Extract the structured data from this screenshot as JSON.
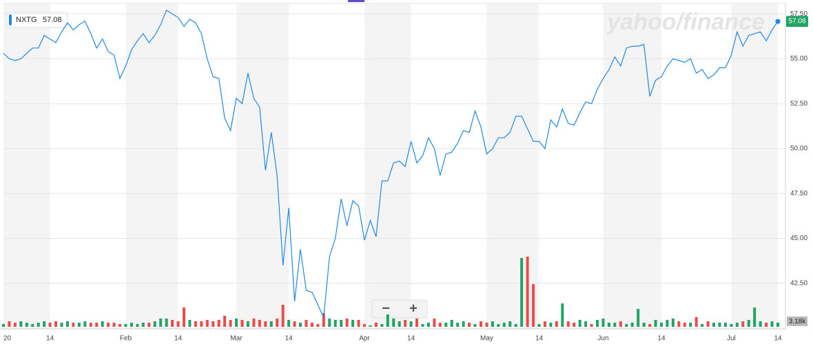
{
  "chart_data": {
    "type": "line",
    "symbol": "NXTG",
    "watermark": "yahoo/finance",
    "zoom_controls": [
      "−",
      "+"
    ],
    "volume_label": "3.18k",
    "categories": [
      "20",
      null,
      null,
      null,
      null,
      null,
      null,
      null,
      "14",
      null,
      null,
      null,
      null,
      null,
      null,
      null,
      null,
      null,
      null,
      null,
      null,
      "Feb",
      null,
      null,
      null,
      null,
      null,
      null,
      null,
      null,
      "14",
      null,
      null,
      null,
      null,
      null,
      null,
      null,
      null,
      null,
      "Mar",
      null,
      null,
      null,
      null,
      null,
      null,
      null,
      null,
      "14",
      null,
      null,
      null,
      null,
      null,
      null,
      null,
      null,
      null,
      null,
      null,
      null,
      "Apr",
      null,
      null,
      null,
      null,
      null,
      null,
      null,
      "14",
      null,
      null,
      null,
      null,
      null,
      null,
      null,
      null,
      null,
      null,
      null,
      null,
      "May",
      null,
      null,
      null,
      null,
      null,
      null,
      null,
      null,
      "14",
      null,
      null,
      null,
      null,
      null,
      null,
      null,
      null,
      null,
      null,
      "Jun",
      null,
      null,
      null,
      null,
      null,
      null,
      null,
      null,
      null,
      "14",
      null,
      null,
      null,
      null,
      null,
      null,
      null,
      null,
      null,
      null,
      null,
      "Jul",
      null,
      null,
      null,
      null,
      null,
      null,
      null,
      "14"
    ],
    "series": [
      {
        "name": "NXTG",
        "color": "#1e88e5",
        "values": [
          55.3,
          55.0,
          54.9,
          55.0,
          55.3,
          55.6,
          55.6,
          56.3,
          56.1,
          55.9,
          56.5,
          57.0,
          56.6,
          56.9,
          57.1,
          56.4,
          55.6,
          56.1,
          55.4,
          55.2,
          53.9,
          54.6,
          55.5,
          56.0,
          56.4,
          55.9,
          56.3,
          56.9,
          57.7,
          57.5,
          57.3,
          56.8,
          57.2,
          57.0,
          56.4,
          55.0,
          54.0,
          53.9,
          51.7,
          51.0,
          52.8,
          52.5,
          54.2,
          52.8,
          52.3,
          48.8,
          50.9,
          48.5,
          43.5,
          46.7,
          41.5,
          44.4,
          42.1,
          42.0,
          41.3,
          40.6,
          44.0,
          45.0,
          47.2,
          45.7,
          47.1,
          46.8,
          44.9,
          46.0,
          45.1,
          48.2,
          48.2,
          49.2,
          49.3,
          49.0,
          50.4,
          49.2,
          49.6,
          50.6,
          50.0,
          48.5,
          49.7,
          49.8,
          50.3,
          51.0,
          50.9,
          52.1,
          51.2,
          49.7,
          50.0,
          50.6,
          50.6,
          50.9,
          51.8,
          51.8,
          51.1,
          50.4,
          50.4,
          50.0,
          51.6,
          51.2,
          52.2,
          51.4,
          51.3,
          52.0,
          52.6,
          52.5,
          53.3,
          53.9,
          54.4,
          55.1,
          54.6,
          55.6,
          55.7,
          55.7,
          55.8,
          52.9,
          53.8,
          54.0,
          54.6,
          55.0,
          54.9,
          54.8,
          55.0,
          54.2,
          54.4,
          53.9,
          54.1,
          54.5,
          54.5,
          55.2,
          56.5,
          55.7,
          56.3,
          56.4,
          56.5,
          56.0,
          56.6,
          57.08
        ]
      }
    ],
    "volume": {
      "up_color": "#21a366",
      "down_color": "#ef4a4a",
      "vlim": [
        0,
        60
      ],
      "values": [
        2,
        4,
        3,
        4,
        3,
        2,
        3,
        4,
        3,
        4,
        3,
        4,
        3,
        3,
        4,
        3,
        3,
        4,
        3,
        3,
        2,
        2,
        3,
        2,
        3,
        3,
        4,
        6,
        6,
        5,
        4,
        14,
        5,
        4,
        4,
        5,
        4,
        5,
        8,
        5,
        6,
        5,
        4,
        6,
        5,
        4,
        4,
        6,
        16,
        5,
        4,
        3,
        5,
        3,
        2,
        10,
        6,
        5,
        5,
        6,
        5,
        5,
        2,
        1,
        3,
        2,
        9,
        6,
        4,
        5,
        4,
        6,
        2,
        3,
        6,
        3,
        3,
        5,
        3,
        4,
        3,
        2,
        4,
        3,
        4,
        2,
        3,
        4,
        2,
        50,
        51,
        31,
        2,
        4,
        3,
        4,
        17,
        4,
        3,
        5,
        4,
        2,
        5,
        6,
        3,
        3,
        4,
        2,
        3,
        13,
        3,
        2,
        5,
        3,
        5,
        6,
        4,
        3,
        3,
        7,
        2,
        4,
        3,
        3,
        3,
        2,
        3,
        4,
        5,
        14,
        4,
        3,
        4,
        3
      ]
    },
    "ylim": [
      40.5,
      58.08
    ],
    "yticks": [
      {
        "value": 42.5,
        "label": "42.50"
      },
      {
        "value": 45,
        "label": "45.00"
      },
      {
        "value": 47.5,
        "label": "47.50"
      },
      {
        "value": 50,
        "label": "50.00"
      },
      {
        "value": 52.5,
        "label": "52.50"
      },
      {
        "value": 55,
        "label": "55.00"
      },
      {
        "value": 57.5,
        "label": "57.50"
      }
    ],
    "grid": true
  }
}
